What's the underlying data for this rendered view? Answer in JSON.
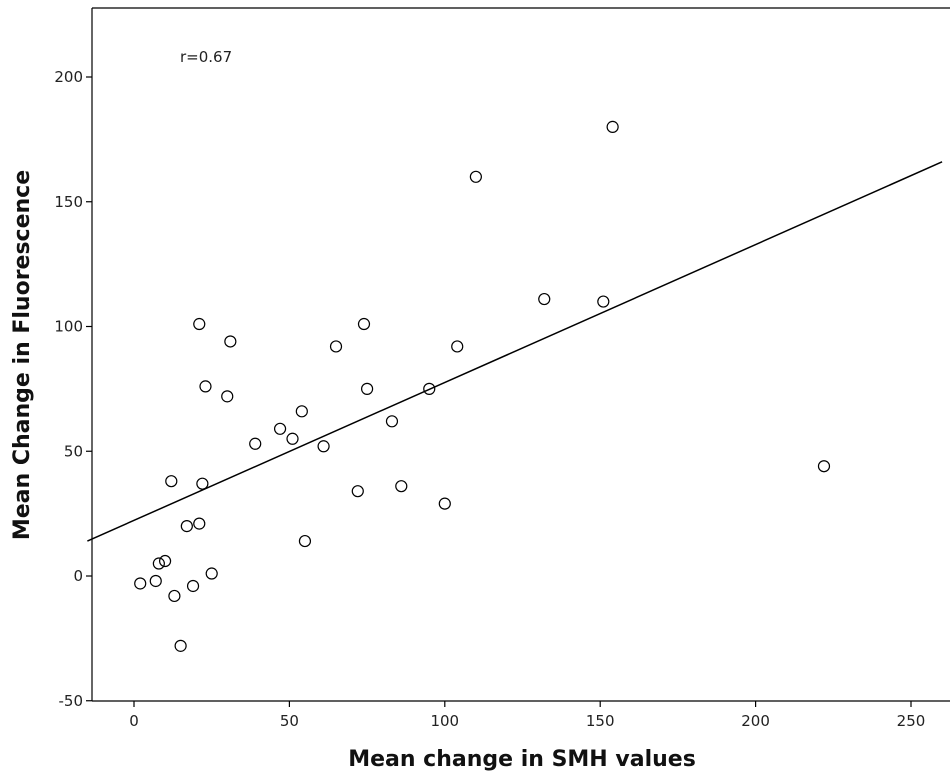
{
  "chart_data": {
    "type": "scatter",
    "xlabel": "Mean change in SMH values",
    "ylabel": "Mean Change in Fluorescence",
    "annotation": "r=0.67",
    "xlim": [
      -15,
      260
    ],
    "ylim": [
      -50,
      228
    ],
    "xticks": [
      0,
      50,
      100,
      150,
      200,
      250
    ],
    "yticks": [
      -50,
      0,
      50,
      100,
      150,
      200
    ],
    "grid": false,
    "points": [
      {
        "x": 2,
        "y": -3
      },
      {
        "x": 7,
        "y": -2
      },
      {
        "x": 8,
        "y": 5
      },
      {
        "x": 10,
        "y": 6
      },
      {
        "x": 12,
        "y": 38
      },
      {
        "x": 13,
        "y": -8
      },
      {
        "x": 15,
        "y": -28
      },
      {
        "x": 17,
        "y": 20
      },
      {
        "x": 19,
        "y": -4
      },
      {
        "x": 21,
        "y": 21
      },
      {
        "x": 21,
        "y": 101
      },
      {
        "x": 22,
        "y": 37
      },
      {
        "x": 23,
        "y": 76
      },
      {
        "x": 25,
        "y": 1
      },
      {
        "x": 30,
        "y": 72
      },
      {
        "x": 31,
        "y": 94
      },
      {
        "x": 39,
        "y": 53
      },
      {
        "x": 47,
        "y": 59
      },
      {
        "x": 51,
        "y": 55
      },
      {
        "x": 54,
        "y": 66
      },
      {
        "x": 55,
        "y": 14
      },
      {
        "x": 61,
        "y": 52
      },
      {
        "x": 65,
        "y": 92
      },
      {
        "x": 72,
        "y": 34
      },
      {
        "x": 74,
        "y": 101
      },
      {
        "x": 75,
        "y": 75
      },
      {
        "x": 83,
        "y": 62
      },
      {
        "x": 86,
        "y": 36
      },
      {
        "x": 95,
        "y": 75
      },
      {
        "x": 100,
        "y": 29
      },
      {
        "x": 104,
        "y": 92
      },
      {
        "x": 110,
        "y": 160
      },
      {
        "x": 132,
        "y": 111
      },
      {
        "x": 151,
        "y": 110
      },
      {
        "x": 154,
        "y": 180
      },
      {
        "x": 222,
        "y": 44
      }
    ],
    "fit_line": {
      "x": [
        -15,
        260
      ],
      "y": [
        14,
        166
      ]
    }
  }
}
